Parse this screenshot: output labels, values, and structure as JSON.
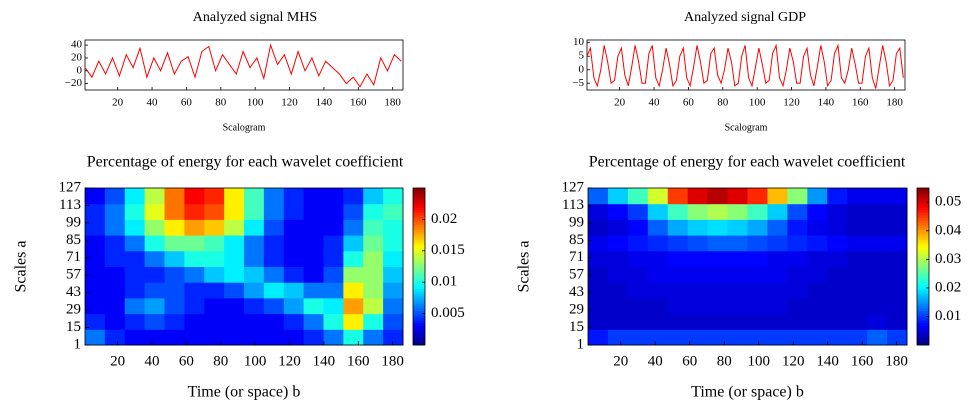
{
  "chart_data": [
    {
      "type": "line",
      "title": "Analyzed signal MHS",
      "xlabel": "Scalogram",
      "color": "#ff0000",
      "x": [
        1,
        5,
        9,
        13,
        17,
        21,
        25,
        29,
        33,
        37,
        41,
        45,
        49,
        53,
        57,
        61,
        65,
        69,
        73,
        77,
        81,
        85,
        89,
        93,
        97,
        101,
        105,
        109,
        113,
        117,
        121,
        125,
        129,
        133,
        137,
        141,
        145,
        149,
        153,
        157,
        161,
        165,
        169,
        173,
        177,
        181,
        185
      ],
      "values": [
        5,
        -10,
        15,
        -5,
        20,
        -8,
        25,
        5,
        35,
        -10,
        20,
        0,
        28,
        -5,
        15,
        22,
        -10,
        30,
        38,
        0,
        25,
        10,
        -5,
        30,
        5,
        20,
        -12,
        40,
        10,
        25,
        -5,
        30,
        0,
        20,
        -8,
        15,
        5,
        -5,
        -20,
        -10,
        -25,
        -5,
        -22,
        20,
        0,
        25,
        15
      ],
      "xlim": [
        1,
        186
      ],
      "ylim": [
        -30,
        48
      ],
      "xticks": [
        20,
        40,
        60,
        80,
        100,
        120,
        140,
        160,
        180
      ],
      "yticks": [
        40,
        20,
        0,
        {
          "value": -20,
          "label": "−20"
        }
      ]
    },
    {
      "type": "line",
      "title": "Analyzed signal GDP",
      "xlabel": "Scalogram",
      "color": "#ff0000",
      "x": [
        1,
        3,
        5,
        7,
        9,
        11,
        13,
        15,
        17,
        19,
        21,
        23,
        25,
        27,
        29,
        31,
        33,
        35,
        37,
        39,
        41,
        43,
        45,
        47,
        49,
        51,
        53,
        55,
        57,
        59,
        61,
        63,
        65,
        67,
        69,
        71,
        73,
        75,
        77,
        79,
        81,
        83,
        85,
        87,
        89,
        91,
        93,
        95,
        97,
        99,
        101,
        103,
        105,
        107,
        109,
        111,
        113,
        115,
        117,
        119,
        121,
        123,
        125,
        127,
        129,
        131,
        133,
        135,
        137,
        139,
        141,
        143,
        145,
        147,
        149,
        151,
        153,
        155,
        157,
        159,
        161,
        163,
        165,
        167,
        169,
        171,
        173,
        175,
        177,
        179,
        181,
        183,
        185
      ],
      "values": [
        5,
        8,
        -3,
        -6,
        0,
        9,
        3,
        -5,
        -4,
        5,
        8,
        -2,
        -6,
        1,
        9,
        3,
        -5,
        -5,
        6,
        9,
        -3,
        -6,
        0,
        8,
        2,
        -6,
        -4,
        5,
        8,
        -3,
        -6,
        1,
        9,
        3,
        -5,
        -4,
        6,
        8,
        -2,
        -5,
        0,
        8,
        3,
        -6,
        -5,
        5,
        9,
        -3,
        -6,
        1,
        8,
        2,
        -5,
        -4,
        6,
        9,
        -3,
        -6,
        0,
        8,
        3,
        -5,
        -5,
        5,
        8,
        -2,
        -6,
        1,
        9,
        3,
        -6,
        -4,
        6,
        9,
        -3,
        -5,
        0,
        8,
        2,
        -5,
        -5,
        5,
        8,
        -3,
        -7,
        1,
        9,
        3,
        -6,
        -4,
        6,
        8,
        -3
      ],
      "xlim": [
        1,
        186
      ],
      "ylim": [
        -7.5,
        11
      ],
      "xticks": [
        20,
        40,
        60,
        80,
        100,
        120,
        140,
        160,
        180
      ],
      "yticks": [
        10,
        5,
        0,
        {
          "value": -5,
          "label": "−5"
        }
      ]
    },
    {
      "type": "heatmap",
      "title": "Percentage of energy for each wavelet coefficient",
      "xlabel": "Time (or space) b",
      "ylabel": "Scales a",
      "xlim": [
        1,
        186
      ],
      "ylim": [
        1,
        127
      ],
      "xticks": [
        20,
        40,
        60,
        80,
        100,
        120,
        140,
        160,
        180
      ],
      "yticks": [
        1,
        15,
        29,
        43,
        57,
        71,
        85,
        99,
        113,
        127
      ],
      "clim": [
        0,
        0.025
      ],
      "cticks": [
        0.005,
        0.01,
        0.015,
        0.02
      ],
      "z": [
        [
          0.006,
          0.004,
          0.003,
          0.003,
          0.003,
          0.003,
          0.003,
          0.003,
          0.003,
          0.003,
          0.003,
          0.004,
          0.006,
          0.01,
          0.006,
          0.004
        ],
        [
          0.004,
          0.003,
          0.004,
          0.005,
          0.004,
          0.003,
          0.003,
          0.003,
          0.003,
          0.003,
          0.004,
          0.006,
          0.01,
          0.016,
          0.01,
          0.005
        ],
        [
          0.003,
          0.003,
          0.006,
          0.007,
          0.005,
          0.004,
          0.003,
          0.003,
          0.004,
          0.005,
          0.007,
          0.01,
          0.009,
          0.018,
          0.014,
          0.006
        ],
        [
          0.003,
          0.003,
          0.004,
          0.005,
          0.005,
          0.004,
          0.004,
          0.005,
          0.007,
          0.009,
          0.008,
          0.006,
          0.006,
          0.016,
          0.013,
          0.007
        ],
        [
          0.003,
          0.003,
          0.004,
          0.004,
          0.005,
          0.006,
          0.008,
          0.009,
          0.008,
          0.006,
          0.004,
          0.003,
          0.005,
          0.013,
          0.013,
          0.008
        ],
        [
          0.003,
          0.004,
          0.004,
          0.006,
          0.008,
          0.01,
          0.01,
          0.009,
          0.006,
          0.004,
          0.003,
          0.003,
          0.004,
          0.01,
          0.013,
          0.009
        ],
        [
          0.003,
          0.004,
          0.006,
          0.01,
          0.012,
          0.012,
          0.011,
          0.009,
          0.006,
          0.004,
          0.003,
          0.003,
          0.004,
          0.008,
          0.012,
          0.01
        ],
        [
          0.004,
          0.006,
          0.009,
          0.013,
          0.016,
          0.018,
          0.017,
          0.014,
          0.009,
          0.005,
          0.003,
          0.003,
          0.003,
          0.006,
          0.011,
          0.01
        ],
        [
          0.004,
          0.006,
          0.01,
          0.015,
          0.019,
          0.021,
          0.02,
          0.016,
          0.011,
          0.006,
          0.004,
          0.003,
          0.003,
          0.005,
          0.01,
          0.011
        ],
        [
          0.003,
          0.005,
          0.009,
          0.014,
          0.019,
          0.022,
          0.021,
          0.016,
          0.011,
          0.006,
          0.004,
          0.003,
          0.003,
          0.004,
          0.008,
          0.01
        ]
      ]
    },
    {
      "type": "heatmap",
      "title": "Percentage of energy for each wavelet coefficient",
      "xlabel": "Time (or space) b",
      "ylabel": "Scales a",
      "xlim": [
        1,
        186
      ],
      "ylim": [
        1,
        127
      ],
      "xticks": [
        20,
        40,
        60,
        80,
        100,
        120,
        140,
        160,
        180
      ],
      "yticks": [
        1,
        15,
        29,
        43,
        57,
        71,
        85,
        99,
        113,
        127
      ],
      "clim": [
        0,
        0.055
      ],
      "cticks": [
        0.01,
        0.02,
        0.03,
        0.04,
        0.05
      ],
      "z": [
        [
          0.008,
          0.01,
          0.01,
          0.01,
          0.01,
          0.01,
          0.01,
          0.01,
          0.01,
          0.01,
          0.01,
          0.01,
          0.01,
          0.01,
          0.012,
          0.01
        ],
        [
          0.004,
          0.004,
          0.004,
          0.004,
          0.004,
          0.004,
          0.004,
          0.004,
          0.004,
          0.004,
          0.004,
          0.004,
          0.004,
          0.004,
          0.005,
          0.004
        ],
        [
          0.004,
          0.004,
          0.004,
          0.004,
          0.005,
          0.005,
          0.005,
          0.005,
          0.005,
          0.005,
          0.004,
          0.004,
          0.004,
          0.004,
          0.004,
          0.004
        ],
        [
          0.004,
          0.004,
          0.005,
          0.005,
          0.005,
          0.005,
          0.005,
          0.005,
          0.005,
          0.005,
          0.005,
          0.004,
          0.004,
          0.004,
          0.004,
          0.004
        ],
        [
          0.004,
          0.005,
          0.005,
          0.006,
          0.006,
          0.006,
          0.006,
          0.006,
          0.006,
          0.006,
          0.005,
          0.005,
          0.004,
          0.004,
          0.004,
          0.004
        ],
        [
          0.005,
          0.005,
          0.006,
          0.006,
          0.007,
          0.007,
          0.007,
          0.007,
          0.007,
          0.006,
          0.006,
          0.005,
          0.005,
          0.004,
          0.004,
          0.004
        ],
        [
          0.006,
          0.007,
          0.008,
          0.009,
          0.01,
          0.011,
          0.012,
          0.012,
          0.011,
          0.01,
          0.009,
          0.008,
          0.007,
          0.006,
          0.006,
          0.006
        ],
        [
          0.004,
          0.005,
          0.007,
          0.012,
          0.016,
          0.018,
          0.019,
          0.018,
          0.016,
          0.012,
          0.008,
          0.006,
          0.005,
          0.004,
          0.004,
          0.004
        ],
        [
          0.005,
          0.007,
          0.01,
          0.018,
          0.024,
          0.028,
          0.03,
          0.028,
          0.024,
          0.018,
          0.011,
          0.007,
          0.005,
          0.004,
          0.004,
          0.004
        ],
        [
          0.012,
          0.018,
          0.024,
          0.032,
          0.045,
          0.05,
          0.052,
          0.05,
          0.046,
          0.038,
          0.028,
          0.015,
          0.008,
          0.006,
          0.006,
          0.006
        ]
      ]
    }
  ]
}
